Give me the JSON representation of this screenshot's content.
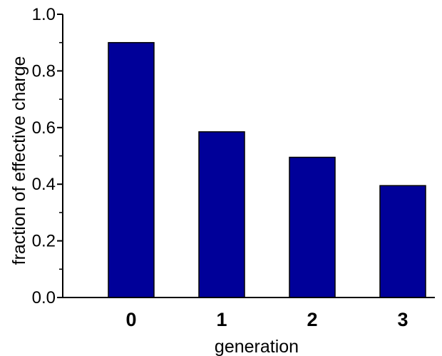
{
  "chart_data": {
    "type": "bar",
    "categories": [
      "0",
      "1",
      "2",
      "3"
    ],
    "values": [
      0.9,
      0.585,
      0.495,
      0.395
    ],
    "xlabel": "generation",
    "ylabel": "fraction of effective charge",
    "ylim": [
      0,
      1.0
    ],
    "yticks": [
      "0.0",
      "0.2",
      "0.4",
      "0.6",
      "0.8",
      "1.0"
    ],
    "ytick_values": [
      0,
      0.2,
      0.4,
      0.6,
      0.8,
      1.0
    ],
    "minor_tick_values": [
      0.1,
      0.3,
      0.5,
      0.7,
      0.9
    ],
    "grid": false,
    "bar_color": "#000099",
    "bar_edge_color": "#000000"
  }
}
